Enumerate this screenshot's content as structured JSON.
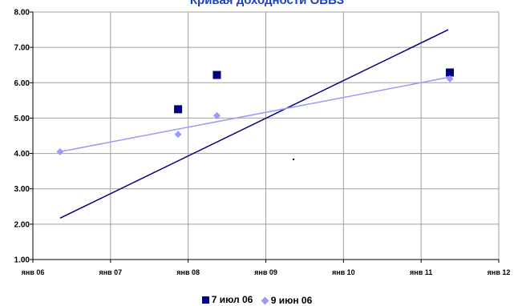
{
  "chart_data": {
    "type": "scatter",
    "title": "Кривая доходности ОВВЗ",
    "xlabel": "",
    "ylabel": "",
    "x_ticks": [
      "янв 06",
      "янв 07",
      "янв 08",
      "янв 09",
      "янв 10",
      "янв 11",
      "янв 12"
    ],
    "y_ticks": [
      "1.00",
      "2.00",
      "3.00",
      "4.00",
      "5.00",
      "6.00",
      "7.00",
      "8.00"
    ],
    "xlim": [
      2006,
      2012
    ],
    "ylim": [
      1,
      8
    ],
    "grid": true,
    "legend_position": "bottom",
    "series": [
      {
        "name": "7 июл 06",
        "marker": "square",
        "color": "#000080",
        "points": [
          [
            2007.87,
            5.25
          ],
          [
            2008.37,
            6.22
          ],
          [
            2011.37,
            6.29
          ]
        ],
        "trendline": [
          [
            2006.35,
            2.17
          ],
          [
            2011.35,
            7.5
          ]
        ]
      },
      {
        "name": "9 июн 06",
        "marker": "diamond",
        "color": "#9999ff",
        "points": [
          [
            2006.35,
            4.05
          ],
          [
            2007.87,
            4.54
          ],
          [
            2008.37,
            5.07
          ],
          [
            2011.37,
            6.11
          ]
        ],
        "trendline": [
          [
            2006.35,
            4.05
          ],
          [
            2011.35,
            6.15
          ]
        ]
      }
    ]
  }
}
